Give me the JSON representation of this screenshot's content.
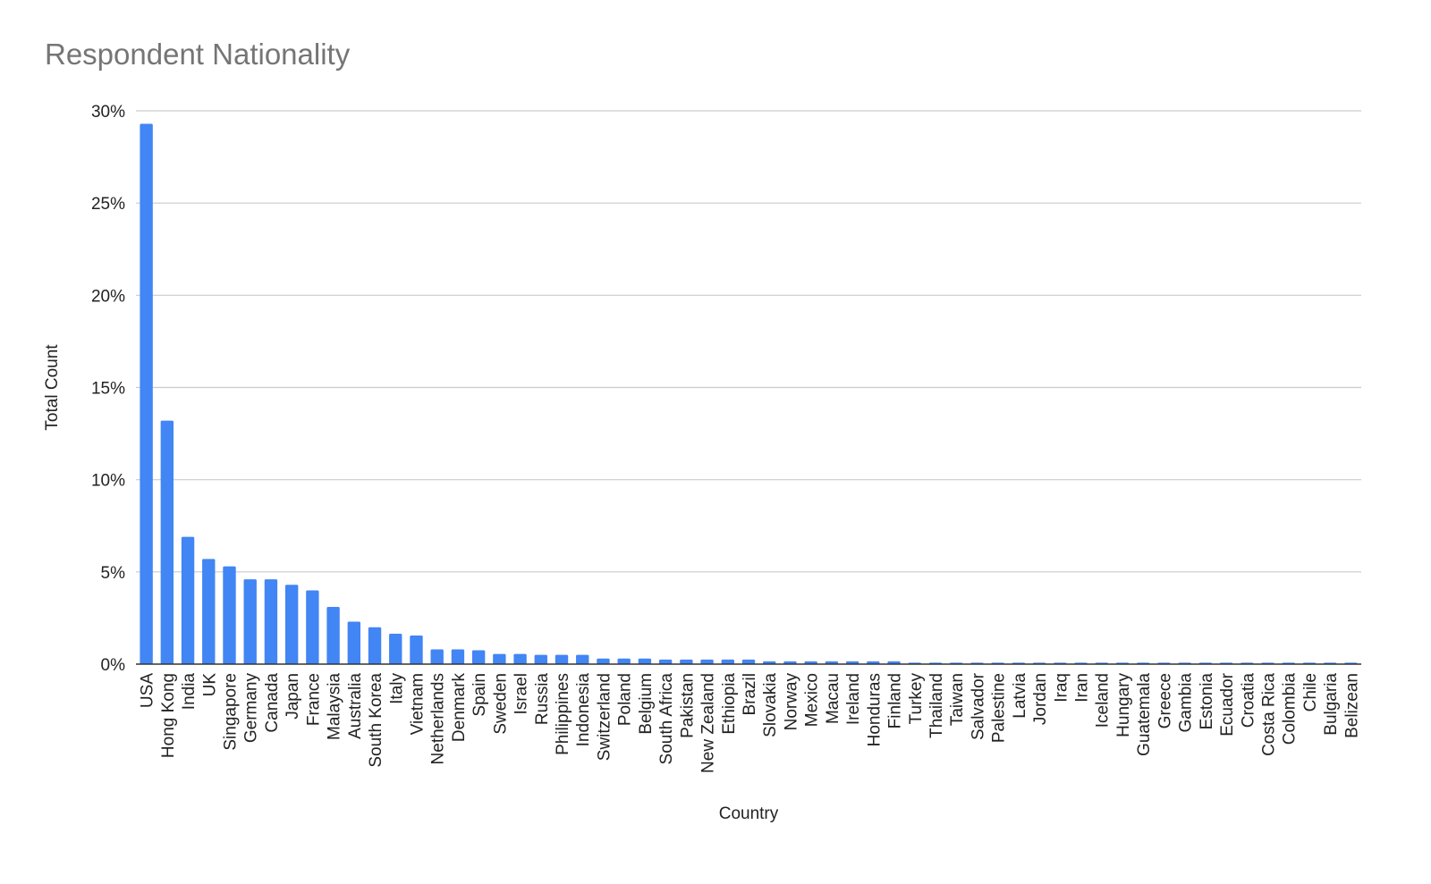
{
  "chart_data": {
    "type": "bar",
    "title": "Respondent Nationality",
    "xlabel": "Country",
    "ylabel": "Total Count",
    "ylim": [
      0,
      30
    ],
    "yticks": [
      "0%",
      "5%",
      "10%",
      "15%",
      "20%",
      "25%",
      "30%"
    ],
    "grid": true,
    "legend": "none",
    "bar_color": "#4285F4",
    "categories": [
      "USA",
      "Hong Kong",
      "India",
      "UK",
      "Singapore",
      "Germany",
      "Canada",
      "Japan",
      "France",
      "Malaysia",
      "Australia",
      "South Korea",
      "Italy",
      "Vietnam",
      "Netherlands",
      "Denmark",
      "Spain",
      "Sweden",
      "Israel",
      "Russia",
      "Philippines",
      "Indonesia",
      "Switzerland",
      "Poland",
      "Belgium",
      "South Africa",
      "Pakistan",
      "New Zealand",
      "Ethiopia",
      "Brazil",
      "Slovakia",
      "Norway",
      "Mexico",
      "Macau",
      "Ireland",
      "Honduras",
      "Finland",
      "Turkey",
      "Thailand",
      "Taiwan",
      "Salvador",
      "Palestine",
      "Latvia",
      "Jordan",
      "Iraq",
      "Iran",
      "Iceland",
      "Hungary",
      "Guatemala",
      "Greece",
      "Gambia",
      "Estonia",
      "Ecuador",
      "Croatia",
      "Costa Rica",
      "Colombia",
      "Chile",
      "Bulgaria",
      "Belizean"
    ],
    "values": [
      29.3,
      13.2,
      6.9,
      5.7,
      5.3,
      4.6,
      4.6,
      4.3,
      4.0,
      3.1,
      2.3,
      2.0,
      1.65,
      1.55,
      0.8,
      0.8,
      0.75,
      0.55,
      0.55,
      0.5,
      0.5,
      0.5,
      0.3,
      0.3,
      0.3,
      0.25,
      0.25,
      0.25,
      0.25,
      0.25,
      0.15,
      0.15,
      0.15,
      0.15,
      0.15,
      0.15,
      0.15,
      0.08,
      0.08,
      0.08,
      0.08,
      0.08,
      0.08,
      0.08,
      0.08,
      0.08,
      0.08,
      0.08,
      0.08,
      0.08,
      0.08,
      0.08,
      0.08,
      0.08,
      0.08,
      0.08,
      0.08,
      0.08,
      0.08
    ]
  }
}
